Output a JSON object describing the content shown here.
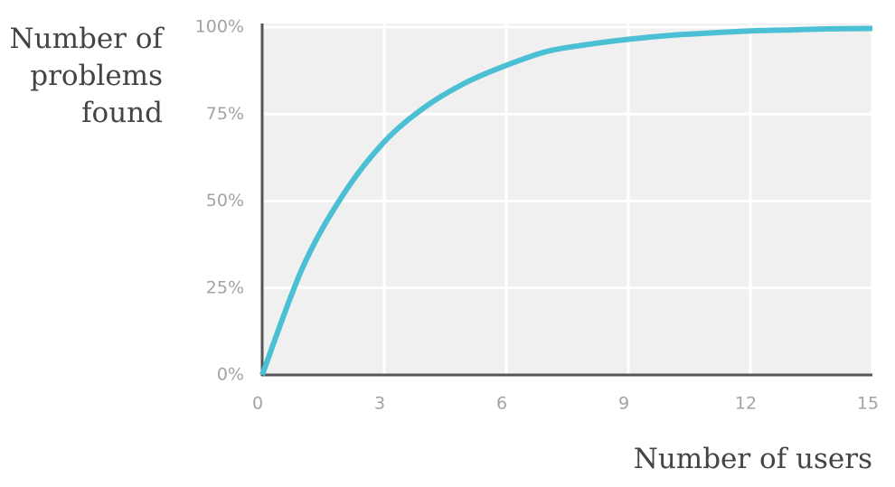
{
  "chart_data": {
    "type": "line",
    "ylabel": [
      "Number of",
      "problems",
      "found"
    ],
    "xlabel": "Number of users",
    "x": [
      0,
      1,
      2,
      3,
      4,
      5,
      6,
      7,
      8,
      9,
      10,
      11,
      12,
      13,
      14,
      15
    ],
    "values": [
      0,
      31,
      52,
      67,
      77,
      84,
      89,
      93,
      95,
      96.5,
      97.6,
      98.3,
      98.9,
      99.2,
      99.5,
      99.6
    ],
    "color": "#4bbfd4",
    "xlim": [
      0,
      15
    ],
    "xticks": [
      0,
      3,
      6,
      9,
      12,
      15
    ],
    "ylim": [
      0,
      100
    ],
    "yticks": [
      {
        "value": 0,
        "label": "0%"
      },
      {
        "value": 25,
        "label": "25%"
      },
      {
        "value": 50,
        "label": "50%"
      },
      {
        "value": 75,
        "label": "75%"
      },
      {
        "value": 100,
        "label": "100%"
      }
    ],
    "grid": true
  }
}
